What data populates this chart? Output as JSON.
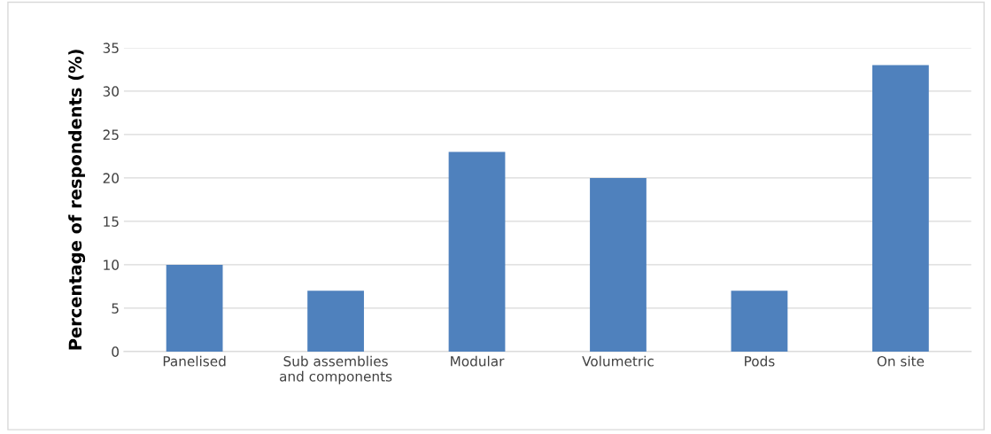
{
  "chart_data": {
    "type": "bar",
    "ylabel": "Percentage of respondents (%)",
    "categories": [
      "Panelised",
      "Sub assemblies\nand components",
      "Modular",
      "Volumetric",
      "Pods",
      "On site"
    ],
    "values": [
      10,
      7,
      23,
      20,
      7,
      33
    ],
    "color": "#4f81bd",
    "ylim": [
      0,
      35
    ],
    "yticks": [
      0,
      5,
      10,
      15,
      20,
      25,
      30,
      35
    ],
    "grid": "y"
  }
}
